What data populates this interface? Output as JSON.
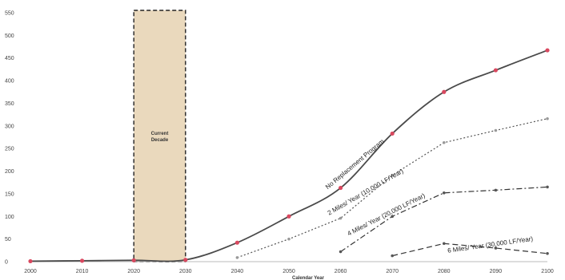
{
  "chart_data": {
    "type": "line",
    "title": "",
    "xlabel": "Calendar Year",
    "ylabel": "",
    "xlim": [
      2000,
      2100
    ],
    "ylim": [
      0,
      550
    ],
    "x_ticks": [
      2000,
      2010,
      2020,
      2030,
      2040,
      2050,
      2060,
      2070,
      2080,
      2090,
      2100
    ],
    "y_ticks": [
      0,
      50,
      100,
      150,
      200,
      250,
      300,
      350,
      400,
      450,
      500,
      550
    ],
    "grid": false,
    "highlight": {
      "x_start": 2020,
      "x_end": 2030,
      "label_line1": "Current",
      "label_line2": "Decade",
      "color": "#EAD9BD"
    },
    "series": [
      {
        "name": "No Replacement Program",
        "style": "solid",
        "color": "#4a4a4a",
        "marker_color": "#d9485f",
        "x": [
          2000,
          2010,
          2020,
          2030,
          2040,
          2050,
          2060,
          2070,
          2080,
          2090,
          2100
        ],
        "values": [
          1,
          2,
          3,
          4,
          42,
          100,
          163,
          283,
          375,
          423,
          467
        ]
      },
      {
        "name": "2 Miles/ Year (10,000 LF/Year)",
        "style": "dotted",
        "color": "#555555",
        "marker_color": "#999999",
        "x": [
          2040,
          2050,
          2060,
          2070,
          2080,
          2090,
          2100
        ],
        "values": [
          9,
          50,
          96,
          191,
          263,
          290,
          316
        ]
      },
      {
        "name": "4 Miles/ Year (20,000 LF/Year)",
        "style": "dashdot",
        "color": "#333333",
        "marker_color": "#555555",
        "x": [
          2060,
          2070,
          2080,
          2090,
          2100
        ],
        "values": [
          22,
          100,
          152,
          158,
          165
        ]
      },
      {
        "name": "6 Miles/ Year (30,000 LF/Year)",
        "style": "dashed",
        "color": "#333333",
        "marker_color": "#555555",
        "x": [
          2070,
          2080,
          2090,
          2100
        ],
        "values": [
          13,
          40,
          30,
          18
        ]
      }
    ]
  }
}
